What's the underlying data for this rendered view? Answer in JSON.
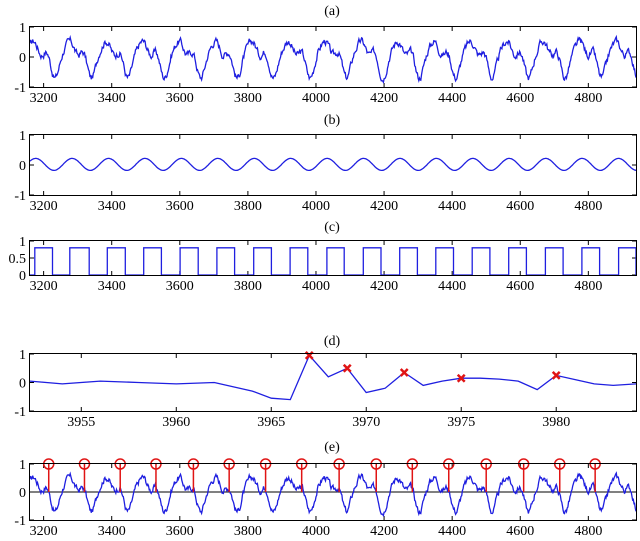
{
  "colors": {
    "signal": "#1f1fe0",
    "marker": "#e01414",
    "axes": "#000000"
  },
  "chart_data": [
    {
      "id": "a",
      "type": "line",
      "title": "(a)",
      "xlim": [
        3160,
        4940
      ],
      "ylim": [
        -1,
        1
      ],
      "xticks": [
        3200,
        3400,
        3600,
        3800,
        4000,
        4200,
        4400,
        4600,
        4800
      ],
      "yticks": [
        -1,
        0,
        1
      ],
      "series": [
        {
          "kind": "quasi-periodic-noisy",
          "period": 107,
          "amplitude": 0.62,
          "offset": 0.02
        }
      ]
    },
    {
      "id": "b",
      "type": "line",
      "title": "(b)",
      "xlim": [
        3160,
        4940
      ],
      "ylim": [
        -1,
        1
      ],
      "xticks": [
        3200,
        3400,
        3600,
        3800,
        4000,
        4200,
        4400,
        4600,
        4800
      ],
      "yticks": [
        -1,
        0,
        1
      ],
      "series": [
        {
          "kind": "sinusoid",
          "period": 107,
          "amplitude": 0.2,
          "offset": 0.02
        }
      ]
    },
    {
      "id": "c",
      "type": "line",
      "title": "(c)",
      "xlim": [
        3160,
        4940
      ],
      "ylim": [
        0,
        1
      ],
      "xticks": [
        3200,
        3400,
        3600,
        3800,
        4000,
        4200,
        4400,
        4600,
        4800
      ],
      "yticks": [
        0,
        0.5,
        1
      ],
      "pulse_height": 0.8,
      "pulses": [
        [
          3174,
          3226
        ],
        [
          3277,
          3334
        ],
        [
          3387,
          3440
        ],
        [
          3494,
          3546
        ],
        [
          3601,
          3654
        ],
        [
          3709,
          3761
        ],
        [
          3817,
          3869
        ],
        [
          3924,
          3976
        ],
        [
          4032,
          4083
        ],
        [
          4139,
          4191
        ],
        [
          4246,
          4298
        ],
        [
          4352,
          4404
        ],
        [
          4459,
          4511
        ],
        [
          4566,
          4618
        ],
        [
          4674,
          4726
        ],
        [
          4781,
          4833
        ],
        [
          4889,
          4940
        ]
      ]
    },
    {
      "id": "d",
      "type": "line",
      "title": "(d)",
      "xlim": [
        3952.3,
        3984.2
      ],
      "ylim": [
        -1,
        1
      ],
      "xticks": [
        3955,
        3960,
        3965,
        3970,
        3975,
        3980
      ],
      "yticks": [
        -1,
        0,
        1
      ],
      "x": [
        3952.3,
        3954,
        3956,
        3958,
        3960,
        3962,
        3964,
        3965,
        3966,
        3967,
        3968,
        3969,
        3970,
        3971,
        3972,
        3973,
        3974,
        3975,
        3976,
        3977,
        3978,
        3979,
        3980,
        3981,
        3982,
        3983,
        3984.2
      ],
      "y": [
        0.05,
        -0.05,
        0.05,
        0.0,
        -0.05,
        0.0,
        -0.3,
        -0.55,
        -0.6,
        0.95,
        0.2,
        0.5,
        -0.35,
        -0.2,
        0.35,
        -0.1,
        0.05,
        0.15,
        0.15,
        0.12,
        0.05,
        -0.25,
        0.25,
        0.1,
        -0.05,
        -0.1,
        -0.05
      ],
      "markers": [
        [
          3967,
          0.95
        ],
        [
          3969,
          0.5
        ],
        [
          3972,
          0.35
        ],
        [
          3975,
          0.15
        ],
        [
          3980,
          0.25
        ]
      ]
    },
    {
      "id": "e",
      "type": "line",
      "title": "(e)",
      "xlim": [
        3160,
        4940
      ],
      "ylim": [
        -1,
        1
      ],
      "xticks": [
        3200,
        3400,
        3600,
        3800,
        4000,
        4200,
        4400,
        4600,
        4800
      ],
      "yticks": [
        -1,
        0,
        1
      ],
      "series": [
        {
          "kind": "quasi-periodic-noisy",
          "period": 107,
          "amplitude": 0.62,
          "offset": 0.02
        }
      ],
      "marker_level": 1,
      "markers_x": [
        3215,
        3320,
        3425,
        3530,
        3640,
        3745,
        3852,
        3958,
        4068,
        4177,
        4283,
        4390,
        4500,
        4610,
        4716,
        4820
      ]
    }
  ]
}
